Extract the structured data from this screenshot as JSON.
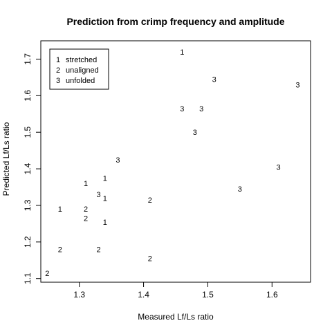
{
  "chart_data": {
    "type": "scatter",
    "title": "Prediction from crimp frequency and amplitude",
    "xlabel": "Measured Lf/Ls ratio",
    "ylabel": "Predicted Lf/Ls ratio",
    "xlim": [
      1.24,
      1.66
    ],
    "ylim": [
      1.09,
      1.75
    ],
    "xticks": [
      "1.3",
      "1.4",
      "1.5",
      "1.6"
    ],
    "yticks": [
      "1.1",
      "1.2",
      "1.3",
      "1.4",
      "1.5",
      "1.6",
      "1.7"
    ],
    "legend_position": "top-left",
    "legend": [
      {
        "symbol": "1",
        "label": "stretched"
      },
      {
        "symbol": "2",
        "label": "unaligned"
      },
      {
        "symbol": "3",
        "label": "unfolded"
      }
    ],
    "points": [
      {
        "x": 1.46,
        "y": 1.72,
        "group": "1"
      },
      {
        "x": 1.31,
        "y": 1.36,
        "group": "1"
      },
      {
        "x": 1.34,
        "y": 1.375,
        "group": "1"
      },
      {
        "x": 1.27,
        "y": 1.29,
        "group": "1"
      },
      {
        "x": 1.34,
        "y": 1.32,
        "group": "1"
      },
      {
        "x": 1.34,
        "y": 1.255,
        "group": "1"
      },
      {
        "x": 1.31,
        "y": 1.29,
        "group": "2"
      },
      {
        "x": 1.31,
        "y": 1.265,
        "group": "2"
      },
      {
        "x": 1.41,
        "y": 1.315,
        "group": "2"
      },
      {
        "x": 1.27,
        "y": 1.18,
        "group": "2"
      },
      {
        "x": 1.33,
        "y": 1.18,
        "group": "2"
      },
      {
        "x": 1.41,
        "y": 1.155,
        "group": "2"
      },
      {
        "x": 1.25,
        "y": 1.115,
        "group": "2"
      },
      {
        "x": 1.51,
        "y": 1.645,
        "group": "3"
      },
      {
        "x": 1.64,
        "y": 1.63,
        "group": "3"
      },
      {
        "x": 1.46,
        "y": 1.565,
        "group": "3"
      },
      {
        "x": 1.49,
        "y": 1.565,
        "group": "3"
      },
      {
        "x": 1.48,
        "y": 1.5,
        "group": "3"
      },
      {
        "x": 1.36,
        "y": 1.425,
        "group": "3"
      },
      {
        "x": 1.61,
        "y": 1.405,
        "group": "3"
      },
      {
        "x": 1.55,
        "y": 1.345,
        "group": "3"
      },
      {
        "x": 1.33,
        "y": 1.33,
        "group": "3"
      }
    ]
  }
}
